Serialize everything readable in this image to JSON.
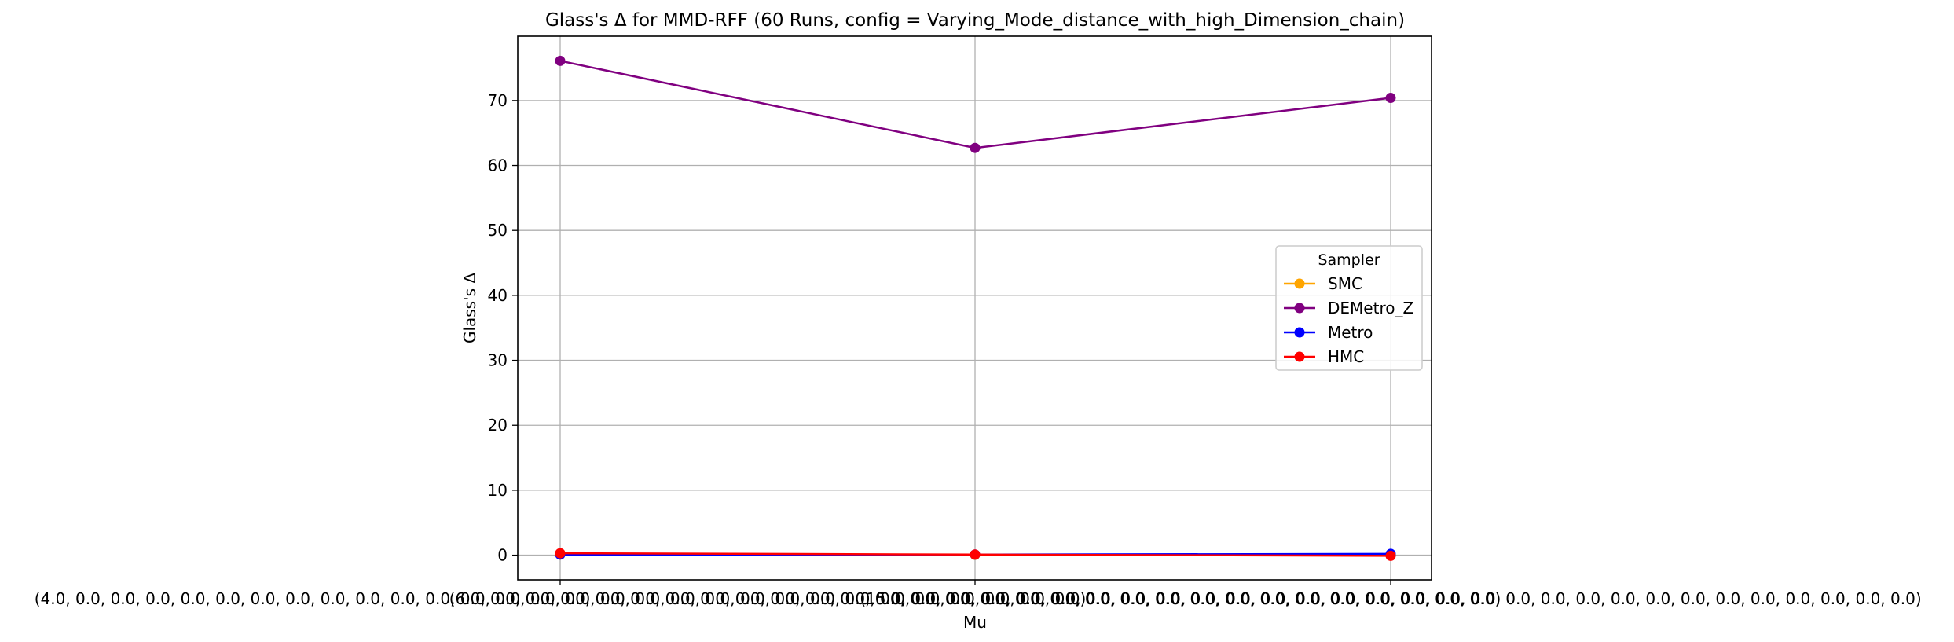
{
  "chart_data": {
    "type": "line",
    "title": "Glass's Δ for MMD-RFF (60 Runs, config = Varying_Mode_distance_with_high_Dimension_chain)",
    "xlabel": "Mu",
    "ylabel": "Glass's Δ",
    "categories": [
      "(4.0, 0.0, 0.0, 0.0, 0.0, 0.0, 0.0, 0.0, 0.0, 0.0, 0.0, 0.0, 0.0, 0.0, 0.0, 0.0, 0.0, 0.0, 0.0, 0.0, 0.0, 0.0, 0.0, 0.0, 0.0, 0.0, 0.0, 0.0, 0.0, 0.0)",
      "(6.0, 0.0, 0.0, 0.0, 0.0, 0.0, 0.0, 0.0, 0.0, 0.0, 0.0, 0.0, 0.0, 0.0, 0.0, 0.0, 0.0, 0.0, 0.0, 0.0, 0.0, 0.0, 0.0, 0.0, 0.0, 0.0, 0.0, 0.0, 0.0, 0.0)",
      "(15.0, 0.0, 0.0, 0.0, 0.0, 0.0, 0.0, 0.0, 0.0, 0.0, 0.0, 0.0, 0.0, 0.0, 0.0, 0.0, 0.0, 0.0, 0.0, 0.0, 0.0, 0.0, 0.0, 0.0, 0.0, 0.0, 0.0, 0.0, 0.0, 0.0)"
    ],
    "ylim": [
      -3.8,
      79.9
    ],
    "yticks": [
      0,
      10,
      20,
      30,
      40,
      50,
      60,
      70
    ],
    "grid": true,
    "legend": {
      "title": "Sampler",
      "placement": "center-right"
    },
    "series": [
      {
        "name": "SMC",
        "color": "#FFA500",
        "values": [
          0.1,
          0.05,
          0.05
        ]
      },
      {
        "name": "DEMetro_Z",
        "color": "#800080",
        "values": [
          76.1,
          62.7,
          70.4
        ]
      },
      {
        "name": "Metro",
        "color": "#0000FF",
        "values": [
          0.1,
          0.1,
          0.2
        ]
      },
      {
        "name": "HMC",
        "color": "#FF0000",
        "values": [
          0.3,
          0.1,
          -0.1
        ]
      }
    ]
  }
}
